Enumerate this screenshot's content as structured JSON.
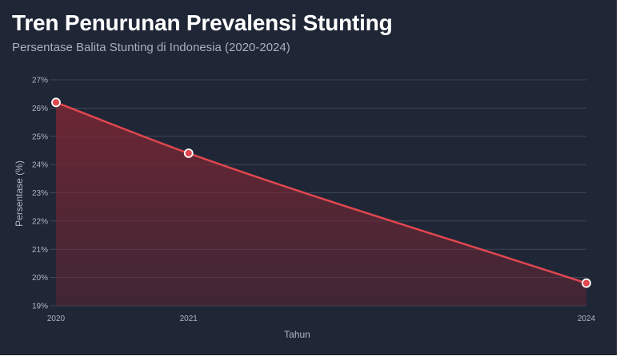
{
  "title": "Tren Penurunan Prevalensi Stunting",
  "subtitle": "Persentase Balita Stunting di Indonesia (2020-2024)",
  "colors": {
    "background": "#1f2636",
    "line": "#e0474f",
    "area": "#7a2633",
    "grid": "#4a5160",
    "text": "#aeb6c4",
    "point_stroke": "#ffffff"
  },
  "chart_data": {
    "type": "area",
    "x": [
      2020,
      2021,
      2024
    ],
    "series": [
      {
        "values": [
          26.2,
          24.4,
          19.8
        ]
      }
    ],
    "xlabel": "Tahun",
    "ylabel": "Persentase (%)",
    "xticks": [
      "2020",
      "2021",
      "2024"
    ],
    "yticks": [
      "19%",
      "20%",
      "21%",
      "22%",
      "23%",
      "24%",
      "25%",
      "26%",
      "27%"
    ],
    "ylim": [
      19,
      27
    ],
    "grid": true,
    "legend": "none",
    "smooth": true
  }
}
